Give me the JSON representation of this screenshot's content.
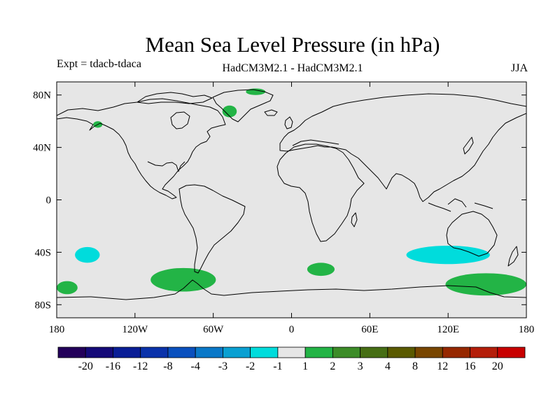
{
  "chart_data": {
    "type": "map",
    "title": "Mean Sea Level Pressure (in hPa)",
    "subtitle_left": "Expt = tdacb-tdaca",
    "subtitle_center": "HadCM3M2.1 - HadCM3M2.1",
    "subtitle_right": "JJA",
    "lon_range": [
      -180,
      180
    ],
    "lat_range": [
      -90,
      90
    ],
    "lon_ticks": [
      {
        "value": -180,
        "label": "180"
      },
      {
        "value": -120,
        "label": "120W"
      },
      {
        "value": -60,
        "label": "60W"
      },
      {
        "value": 0,
        "label": "0"
      },
      {
        "value": 60,
        "label": "60E"
      },
      {
        "value": 120,
        "label": "120E"
      },
      {
        "value": 180,
        "label": "180"
      }
    ],
    "lat_ticks": [
      {
        "value": 80,
        "label": "80N"
      },
      {
        "value": 40,
        "label": "40N"
      },
      {
        "value": 0,
        "label": "0"
      },
      {
        "value": -40,
        "label": "40S"
      },
      {
        "value": -80,
        "label": "80S"
      }
    ],
    "colorbar": {
      "colors": [
        "#23005a",
        "#150a78",
        "#0a1e96",
        "#0a32aa",
        "#0a50be",
        "#0a78c8",
        "#0aa0d2",
        "#00dcdc",
        "#e6e6e6",
        "#23b446",
        "#3c8c28",
        "#466e14",
        "#5a5a00",
        "#784600",
        "#962800",
        "#b41e0a",
        "#c80000"
      ],
      "labels": [
        "-20",
        "-16",
        "-12",
        "-8",
        "-4",
        "-3",
        "-2",
        "-1",
        "1",
        "2",
        "3",
        "4",
        "8",
        "12",
        "16",
        "20"
      ]
    },
    "anomaly_regions": [
      {
        "name": "cyan-southeast-pacific",
        "color": "#00dcdc",
        "lon": [
          -166,
          -147
        ],
        "lat": [
          -48,
          -36
        ],
        "value": -1.5
      },
      {
        "name": "cyan-south-indian-ocean",
        "color": "#00dcdc",
        "lon": [
          88,
          152
        ],
        "lat": [
          -49,
          -35
        ],
        "value": -1.5
      },
      {
        "name": "green-south-pacific-amundsen",
        "color": "#23b446",
        "lon": [
          -108,
          -58
        ],
        "lat": [
          -70,
          -52
        ],
        "value": 1.5
      },
      {
        "name": "green-south-atlantic",
        "color": "#23b446",
        "lon": [
          12,
          33
        ],
        "lat": [
          -58,
          -48
        ],
        "value": 1.5
      },
      {
        "name": "green-southern-ocean-east",
        "color": "#23b446",
        "lon": [
          118,
          180
        ],
        "lat": [
          -73,
          -56
        ],
        "value": 1.5
      },
      {
        "name": "green-ross-sea-west",
        "color": "#23b446",
        "lon": [
          -180,
          -164
        ],
        "lat": [
          -72,
          -62
        ],
        "value": 1.5
      },
      {
        "name": "green-greenland",
        "color": "#23b446",
        "lon": [
          -53,
          -42
        ],
        "lat": [
          63,
          72
        ],
        "value": 1.5
      },
      {
        "name": "green-alaska-coast",
        "color": "#23b446",
        "lon": [
          -152,
          -145
        ],
        "lat": [
          55,
          60
        ],
        "value": 1.5
      },
      {
        "name": "green-arctic-north",
        "color": "#23b446",
        "lon": [
          -35,
          -20
        ],
        "lat": [
          80,
          85
        ],
        "value": 1.5
      }
    ]
  }
}
